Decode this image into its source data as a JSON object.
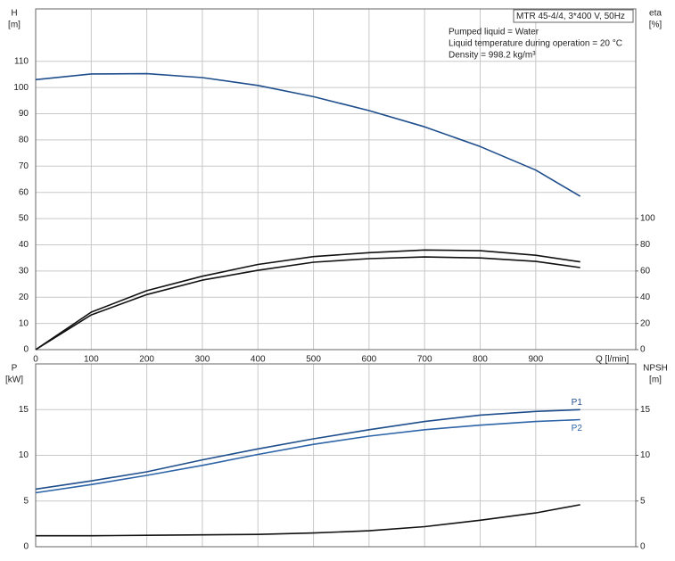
{
  "chart_data": [
    {
      "type": "line",
      "ylabel": "H",
      "yunit": "[m]",
      "y2label": "eta",
      "y2unit": "[%]",
      "xlabel": "Q [l/min]",
      "info_title": "MTR 45-4/4, 3*400 V, 50Hz",
      "info_lines": [
        "Pumped liquid = Water",
        "Liquid temperature during operation = 20 °C",
        "Density = 998.2 kg/m³"
      ],
      "x": [
        0,
        100,
        200,
        300,
        400,
        500,
        600,
        700,
        800,
        900,
        980
      ],
      "xlim": [
        0,
        1080
      ],
      "xticks": [
        0,
        100,
        200,
        300,
        400,
        500,
        600,
        700,
        800,
        900
      ],
      "xtick_labels": true,
      "ylim": [
        0,
        130
      ],
      "yticks": [
        0,
        10,
        20,
        30,
        40,
        50,
        60,
        70,
        80,
        90,
        100,
        110
      ],
      "y2lim": [
        0,
        260
      ],
      "y2ticks": [
        0,
        20,
        40,
        60,
        80,
        100
      ],
      "grid": true,
      "series": [
        {
          "color": "#1f4e8c",
          "values": [
            103,
            105.2,
            105.3,
            103.8,
            100.8,
            96.5,
            91.2,
            85,
            77.5,
            68.5,
            58.5
          ]
        },
        {
          "color": "#111111",
          "axis": "y2",
          "values": [
            0,
            28.6,
            45,
            56,
            65,
            71,
            74,
            76,
            75.5,
            72,
            67
          ]
        },
        {
          "color": "#111111",
          "axis": "y2",
          "values": [
            0,
            26.5,
            42,
            53,
            60.5,
            66.7,
            69.4,
            70.7,
            70,
            67.3,
            62.6
          ]
        }
      ]
    },
    {
      "type": "line",
      "ylabel": "P",
      "yunit": "[kW]",
      "y2label": "NPSH",
      "y2unit": "[m]",
      "x": [
        0,
        100,
        200,
        300,
        400,
        500,
        600,
        700,
        800,
        900,
        980
      ],
      "xlim": [
        0,
        1080
      ],
      "xticks": [
        0,
        100,
        200,
        300,
        400,
        500,
        600,
        700,
        800,
        900
      ],
      "xtick_labels": false,
      "ylim": [
        0,
        20
      ],
      "yticks": [
        0,
        5,
        10,
        15
      ],
      "y2lim": [
        0,
        20
      ],
      "y2ticks": [
        0,
        5,
        10,
        15
      ],
      "grid": true,
      "series": [
        {
          "name": "P1",
          "color": "#1f4e8c",
          "values": [
            6.3,
            7.2,
            8.2,
            9.5,
            10.7,
            11.8,
            12.8,
            13.7,
            14.4,
            14.8,
            15.0
          ]
        },
        {
          "name": "P2",
          "color": "#2e64a8",
          "values": [
            5.9,
            6.8,
            7.8,
            8.9,
            10.1,
            11.2,
            12.1,
            12.8,
            13.3,
            13.7,
            13.9
          ]
        },
        {
          "color": "#111111",
          "axis": "y2",
          "values": [
            1.2,
            1.2,
            1.25,
            1.3,
            1.35,
            1.5,
            1.75,
            2.2,
            2.9,
            3.7,
            4.6
          ]
        }
      ]
    }
  ]
}
